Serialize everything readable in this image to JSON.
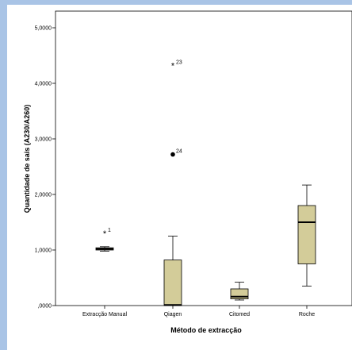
{
  "chart_data": {
    "type": "boxplot",
    "title": "",
    "xlabel": "Método de extracção",
    "ylabel": "Quantidade de sais (A230/A260)",
    "ylim": [
      0,
      5.3
    ],
    "y_ticks": [
      {
        "value": 0,
        "label": ",0000"
      },
      {
        "value": 1,
        "label": "1,0000"
      },
      {
        "value": 2,
        "label": "2,0000"
      },
      {
        "value": 3,
        "label": "3,0000"
      },
      {
        "value": 4,
        "label": "4,0000"
      },
      {
        "value": 5,
        "label": "5,0000"
      }
    ],
    "categories": [
      "Extracção Manual",
      "Qiagen",
      "Citomed",
      "Roche"
    ],
    "boxes": [
      {
        "category": "Extracção Manual",
        "min": 0.98,
        "q1": 1.0,
        "median": 1.02,
        "q3": 1.04,
        "max": 1.06
      },
      {
        "category": "Qiagen",
        "min": 0.0,
        "q1": 0.0,
        "median": 0.01,
        "q3": 0.82,
        "max": 1.25
      },
      {
        "category": "Citomed",
        "min": 0.1,
        "q1": 0.12,
        "median": 0.16,
        "q3": 0.3,
        "max": 0.42
      },
      {
        "category": "Roche",
        "min": 0.35,
        "q1": 0.75,
        "median": 1.5,
        "q3": 1.8,
        "max": 2.17
      }
    ],
    "outliers": [
      {
        "category": "Extracção Manual",
        "value": 1.3,
        "label": "1",
        "marker": "extreme-star"
      },
      {
        "category": "Qiagen",
        "value": 4.32,
        "label": "23",
        "marker": "extreme-star"
      },
      {
        "category": "Qiagen",
        "value": 2.72,
        "label": "24",
        "marker": "circle"
      }
    ],
    "colors": {
      "box_fill": "#d3cc99",
      "box_stroke": "#000000",
      "background": "#ffffff",
      "page_border": "#a9c4e6"
    }
  }
}
